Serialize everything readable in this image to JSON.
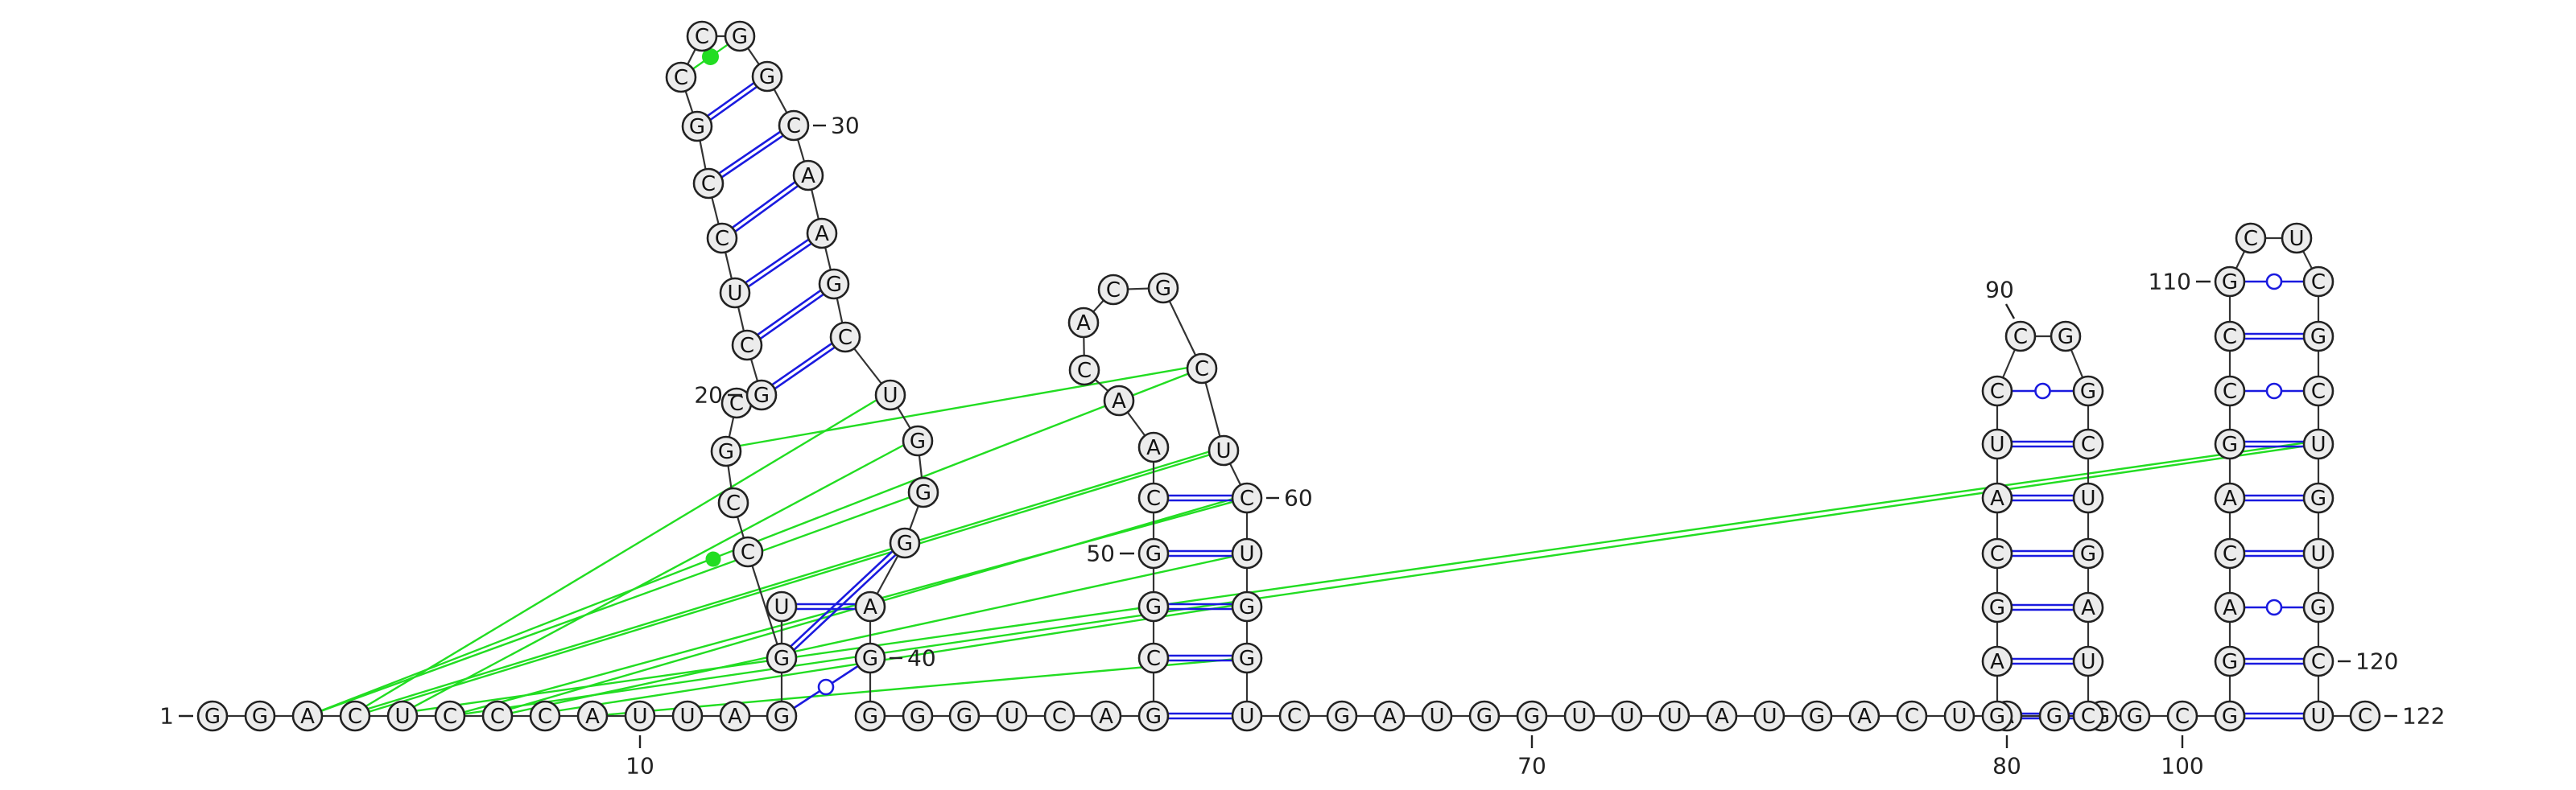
{
  "molecule": {
    "sequence": "GGACUCCCAUUAGUGCCGCGCUCCGCCGGCAAGCUGGGAGGGGUCAGCGGCAACACGCUCUGGUCGAUGGUUUAUGACUAGGGAGCAUCCGGCUGAUCGCCGGACAGCCGCUCGCUGUGCUC",
    "length": 122
  },
  "position_labels": [
    {
      "label": "1",
      "nt": 1
    },
    {
      "label": "10",
      "nt": 10
    },
    {
      "label": "20",
      "nt": 20
    },
    {
      "label": "30",
      "nt": 30
    },
    {
      "label": "40",
      "nt": 40
    },
    {
      "label": "50",
      "nt": 50
    },
    {
      "label": "60",
      "nt": 60
    },
    {
      "label": "70",
      "nt": 70
    },
    {
      "label": "80",
      "nt": 80
    },
    {
      "label": "90",
      "nt": 90
    },
    {
      "label": "100",
      "nt": 100
    },
    {
      "label": "110",
      "nt": 110
    },
    {
      "label": "120",
      "nt": 120
    },
    {
      "label": "122",
      "nt": 122
    }
  ],
  "base_pairs": [
    {
      "i": 13,
      "j": 40,
      "type": "wobble"
    },
    {
      "i": 14,
      "j": 39,
      "type": "wc"
    },
    {
      "i": 15,
      "j": 38,
      "type": "wc"
    },
    {
      "i": 20,
      "j": 34,
      "type": "wc"
    },
    {
      "i": 21,
      "j": 33,
      "type": "wc"
    },
    {
      "i": 22,
      "j": 32,
      "type": "wc"
    },
    {
      "i": 23,
      "j": 31,
      "type": "wc"
    },
    {
      "i": 24,
      "j": 30,
      "type": "wc"
    },
    {
      "i": 25,
      "j": 29,
      "type": "wc"
    },
    {
      "i": 26,
      "j": 28,
      "type": "noncanonical"
    },
    {
      "i": 47,
      "j": 64,
      "type": "wc"
    },
    {
      "i": 48,
      "j": 63,
      "type": "wc"
    },
    {
      "i": 49,
      "j": 62,
      "type": "wc"
    },
    {
      "i": 50,
      "j": 61,
      "type": "wc"
    },
    {
      "i": 51,
      "j": 60,
      "type": "wc"
    },
    {
      "i": 83,
      "j": 98,
      "type": "wc"
    },
    {
      "i": 84,
      "j": 97,
      "type": "wc"
    },
    {
      "i": 85,
      "j": 96,
      "type": "wc"
    },
    {
      "i": 86,
      "j": 95,
      "type": "wc"
    },
    {
      "i": 87,
      "j": 94,
      "type": "wc"
    },
    {
      "i": 88,
      "j": 93,
      "type": "wc"
    },
    {
      "i": 89,
      "j": 92,
      "type": "wobble"
    },
    {
      "i": 102,
      "j": 121,
      "type": "wc"
    },
    {
      "i": 103,
      "j": 120,
      "type": "wc"
    },
    {
      "i": 104,
      "j": 119,
      "type": "wobble"
    },
    {
      "i": 105,
      "j": 118,
      "type": "wc"
    },
    {
      "i": 106,
      "j": 117,
      "type": "wc"
    },
    {
      "i": 107,
      "j": 116,
      "type": "wc"
    },
    {
      "i": 108,
      "j": 115,
      "type": "wobble"
    },
    {
      "i": 109,
      "j": 114,
      "type": "wc"
    },
    {
      "i": 110,
      "j": 113,
      "type": "wobble"
    }
  ],
  "tertiary_interactions": [
    {
      "i": 3,
      "j": 58
    },
    {
      "i": 4,
      "j": 59
    },
    {
      "i": 4,
      "j": 59
    },
    {
      "i": 5,
      "j": 36
    },
    {
      "i": 6,
      "j": 60
    },
    {
      "i": 7,
      "j": 60
    },
    {
      "i": 7,
      "j": 61
    },
    {
      "i": 8,
      "j": 62
    },
    {
      "i": 9,
      "j": 63
    },
    {
      "i": 4,
      "j": 35
    },
    {
      "i": 3,
      "j": 37
    },
    {
      "i": 5,
      "j": 116
    },
    {
      "i": 6,
      "j": 116
    },
    {
      "i": 18,
      "j": 58
    }
  ],
  "colors": {
    "nucleotide_fill": "#ececec",
    "outline": "#222222",
    "canonical_pair": "#1a1adf",
    "noncanonical_interaction": "#22dd22",
    "background": "#ffffff"
  }
}
